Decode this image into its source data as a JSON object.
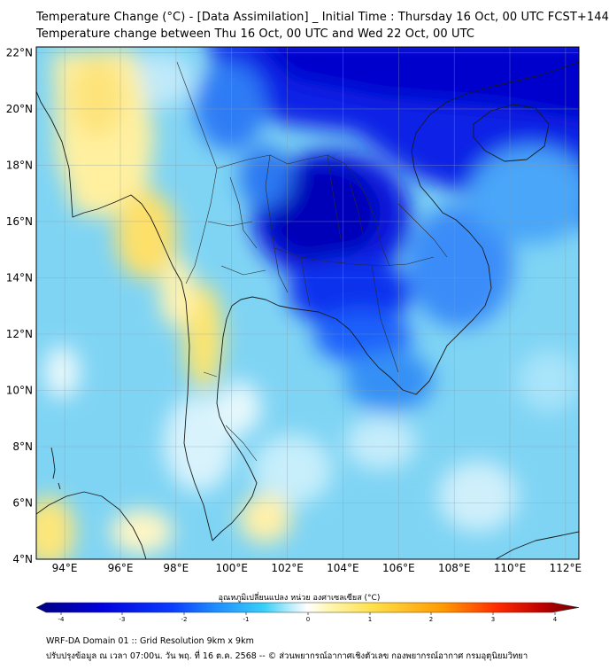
{
  "title_line1": "Temperature Change (°C) - [Data Assimilation] _ Initial Time : Thursday 16 Oct, 00 UTC FCST+144",
  "title_line2": "Temperature change between Thu 16 Oct, 00 UTC and Wed 22 Oct, 00 UTC",
  "map": {
    "lon_range": [
      93,
      112.5
    ],
    "lat_range": [
      4,
      22.2
    ],
    "lat_ticks": [
      "22°N",
      "20°N",
      "18°N",
      "16°N",
      "14°N",
      "12°N",
      "10°N",
      "8°N",
      "6°N",
      "4°N"
    ],
    "lon_ticks": [
      "94°E",
      "96°E",
      "98°E",
      "100°E",
      "102°E",
      "104°E",
      "106°E",
      "108°E",
      "110°E",
      "112°E"
    ]
  },
  "colorbar": {
    "label": "อุณหภูมิเปลี่ยนแปลง หน่วย องศาเซลเซียส (°C)",
    "range": [
      -4,
      4
    ],
    "ticks": [
      "-4",
      "-3",
      "-2",
      "-1",
      "0",
      "1",
      "2",
      "3",
      "4"
    ],
    "colors": [
      "#00007f",
      "#0000dd",
      "#0a3cff",
      "#1f8cff",
      "#38d0f8",
      "#bdeefc",
      "#ffffff",
      "#fff6b0",
      "#ffe04a",
      "#ff9a00",
      "#ff2a00",
      "#c00000",
      "#6a0000"
    ]
  },
  "footer_line1": "WRF-DA Domain 01 :: Grid Resolution 9km x 9km",
  "footer_line2": "ปรับปรุงข้อมูล ณ เวลา 07:00น. วัน พฤ. ที่ 16 ต.ค. 2568 -- © ส่วนพยากรณ์อากาศเชิงตัวเลข กองพยากรณ์อากาศ กรมอุตุนิยมวิทยา"
}
